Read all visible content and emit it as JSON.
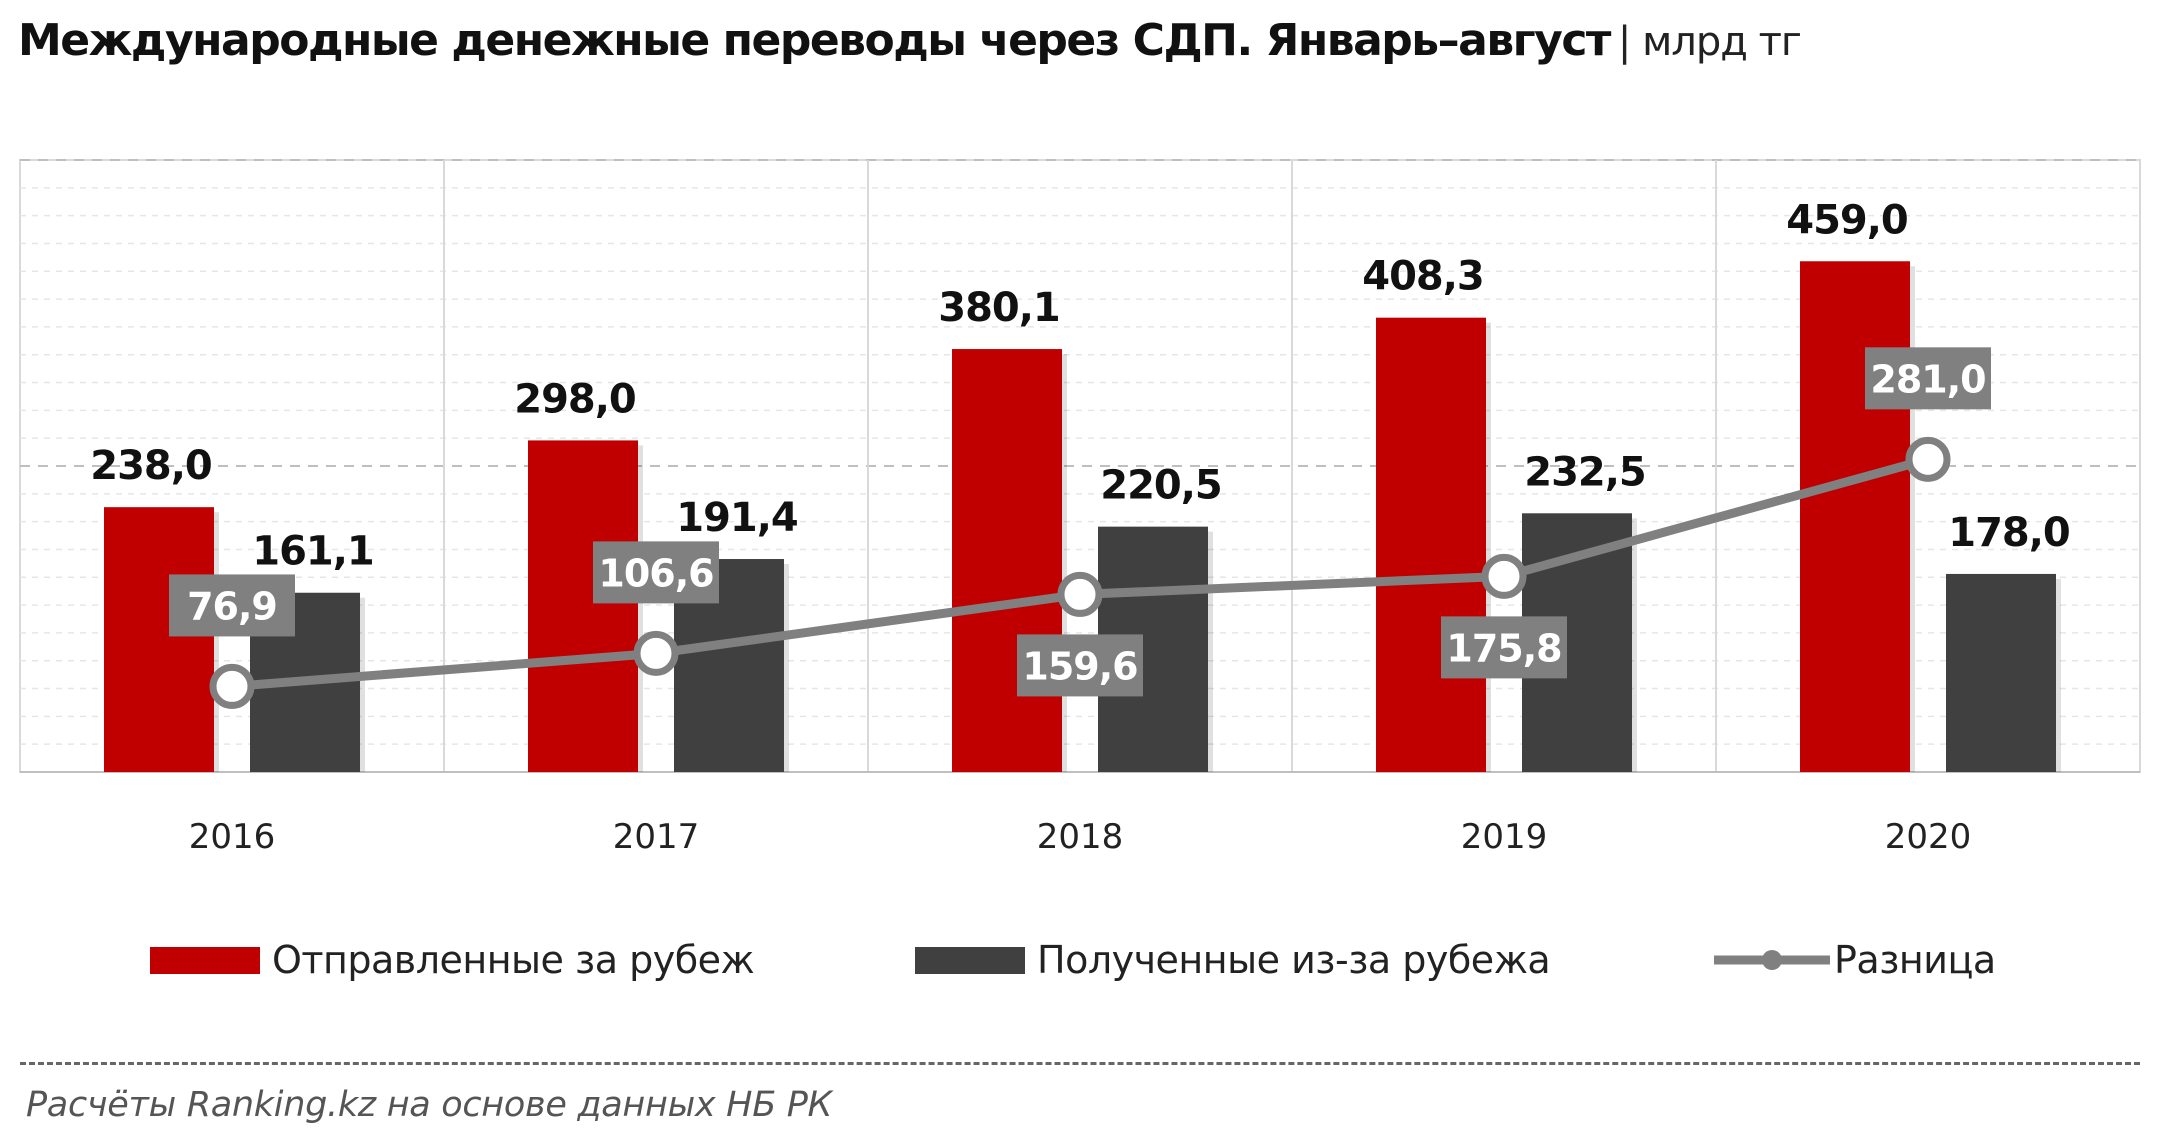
{
  "title": "Международные денежные переводы через СДП.  Январь–август",
  "unit": "| млрд тг",
  "source": "Расчёты Ranking.kz на основе данных  НБ РК",
  "colors": {
    "sent": "#c00000",
    "received": "#404040",
    "difference": "#808080",
    "label_box": "#808080"
  },
  "legend": [
    {
      "name": "sent",
      "label": "Отправленные за рубеж",
      "symbol": "bar"
    },
    {
      "name": "received",
      "label": "Полученные из-за рубежа",
      "symbol": "bar"
    },
    {
      "name": "difference",
      "label": "Разница",
      "symbol": "line-marker"
    }
  ],
  "chart_data": {
    "type": "bar",
    "categories": [
      "2016",
      "2017",
      "2018",
      "2019",
      "2020"
    ],
    "series": [
      {
        "name": "Отправленные за рубеж",
        "type": "bar",
        "values": [
          238.0,
          298.0,
          380.1,
          408.3,
          459.0
        ],
        "labels": [
          "238,0",
          "298,0",
          "380,1",
          "408,3",
          "459,0"
        ]
      },
      {
        "name": "Полученные из-за рубежа",
        "type": "bar",
        "values": [
          161.1,
          191.4,
          220.5,
          232.5,
          178.0
        ],
        "labels": [
          "161,1",
          "191,4",
          "220,5",
          "232,5",
          "178,0"
        ]
      },
      {
        "name": "Разница",
        "type": "line",
        "values": [
          76.9,
          106.6,
          159.6,
          175.8,
          281.0
        ],
        "labels": [
          "76,9",
          "106,6",
          "159,6",
          "175,8",
          "281,0"
        ],
        "label_position": [
          "above",
          "above",
          "below",
          "below",
          "above"
        ]
      }
    ],
    "ylim": [
      0,
      550
    ],
    "grid": true,
    "legend_position": "bottom"
  }
}
